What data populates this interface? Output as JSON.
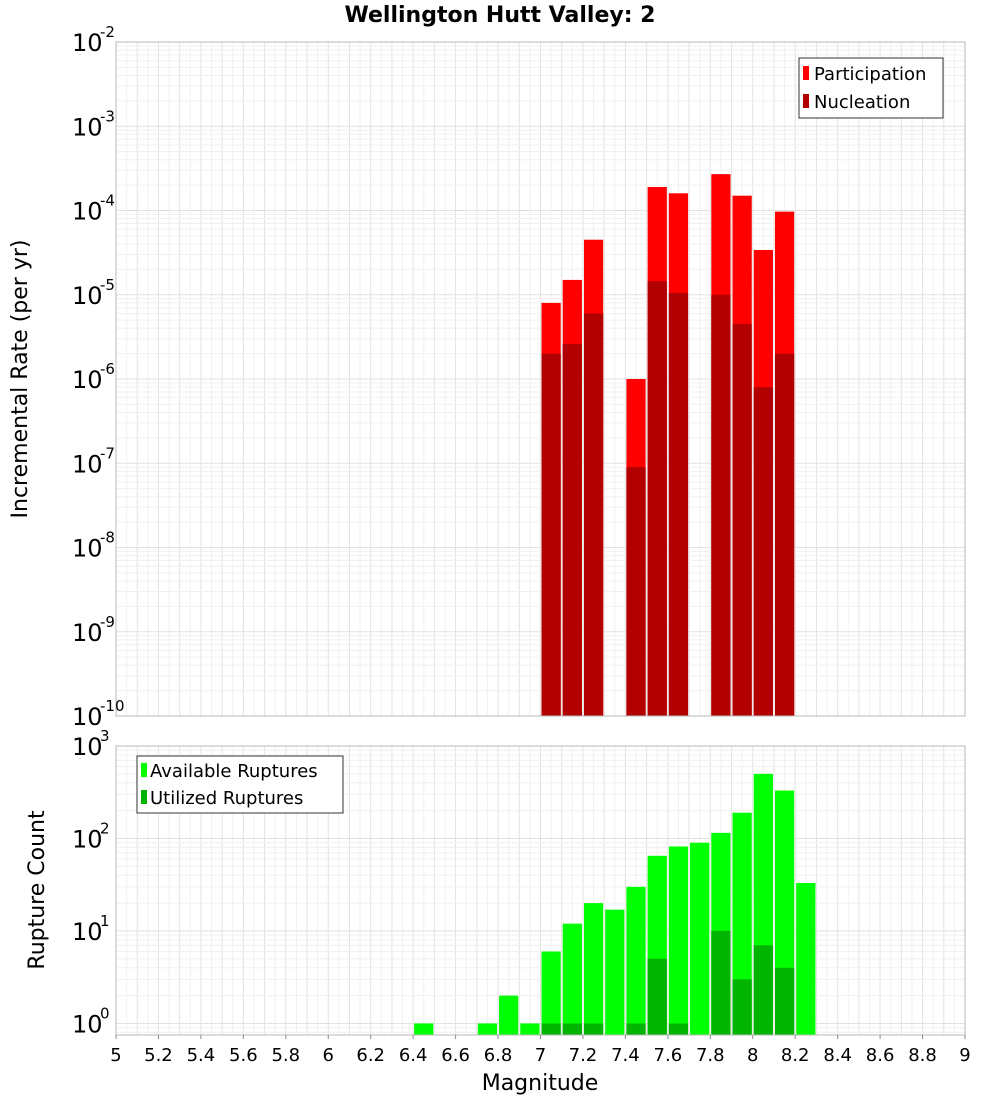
{
  "chart_data": [
    {
      "type": "bar",
      "title": "Wellington Hutt Valley: 2",
      "xlabel": "",
      "ylabel": "Incremental Rate (per yr)",
      "yscale": "log",
      "ylim": [
        1e-10,
        0.01
      ],
      "xlim": [
        5,
        9
      ],
      "y_tick_exponents": [
        "-2",
        "-3",
        "-4",
        "-5",
        "-6",
        "-7",
        "-8",
        "-9",
        "-10"
      ],
      "y_tick_base": "10",
      "legend_position": "top-right",
      "grid": true,
      "series": [
        {
          "name": "Participation",
          "color": "#ff0000",
          "x": [
            7.05,
            7.15,
            7.25,
            7.45,
            7.55,
            7.65,
            7.85,
            7.95,
            8.05,
            8.15
          ],
          "values": [
            8e-06,
            1.5e-05,
            4.5e-05,
            1e-06,
            0.00019,
            0.00016,
            0.00027,
            0.00015,
            3.4e-05,
            9.7e-05
          ]
        },
        {
          "name": "Nucleation",
          "color": "#b20000",
          "x": [
            7.05,
            7.15,
            7.25,
            7.45,
            7.55,
            7.65,
            7.85,
            7.95,
            8.05,
            8.15
          ],
          "values": [
            2e-06,
            2.6e-06,
            6e-06,
            9e-08,
            1.45e-05,
            1.05e-05,
            1e-05,
            4.5e-06,
            8e-07,
            2e-06
          ]
        }
      ]
    },
    {
      "type": "bar",
      "xlabel": "Magnitude",
      "ylabel": "Rupture Count",
      "yscale": "log",
      "ylim": [
        0.75,
        1000
      ],
      "xlim": [
        5,
        9
      ],
      "y_tick_exponents": [
        "3",
        "2",
        "1",
        "0"
      ],
      "y_tick_base": "10",
      "x_ticks": [
        "5",
        "5.2",
        "5.4",
        "5.6",
        "5.8",
        "6",
        "6.2",
        "6.4",
        "6.6",
        "6.8",
        "7",
        "7.2",
        "7.4",
        "7.6",
        "7.8",
        "8",
        "8.2",
        "8.4",
        "8.6",
        "8.8",
        "9"
      ],
      "legend_position": "top-left",
      "grid": true,
      "series": [
        {
          "name": "Available Ruptures",
          "color": "#00ff00",
          "x": [
            6.45,
            6.75,
            6.85,
            6.95,
            7.05,
            7.15,
            7.25,
            7.35,
            7.45,
            7.55,
            7.65,
            7.75,
            7.85,
            7.95,
            8.05,
            8.15,
            8.25
          ],
          "values": [
            1,
            1,
            2,
            1,
            6,
            12,
            20,
            17,
            30,
            65,
            82,
            90,
            115,
            190,
            500,
            330,
            33
          ]
        },
        {
          "name": "Utilized Ruptures",
          "color": "#00b400",
          "x": [
            7.05,
            7.15,
            7.25,
            7.45,
            7.55,
            7.65,
            7.85,
            7.95,
            8.05,
            8.15
          ],
          "values": [
            1,
            1,
            1,
            1,
            5,
            1,
            10,
            3,
            7,
            4
          ]
        }
      ]
    }
  ]
}
